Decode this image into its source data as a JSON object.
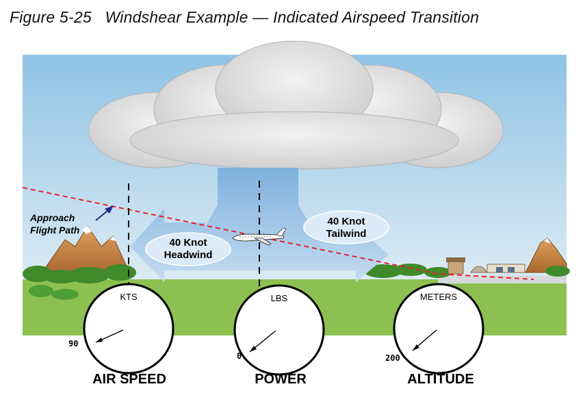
{
  "title": "Figure 5-25   Windshear Example — Indicated Airspeed Transition",
  "labels": {
    "approach_line1": "Approach",
    "approach_line2": "Flight Path",
    "headwind_line1": "40 Knot",
    "headwind_line2": "Headwind",
    "tailwind_line1": "40 Knot",
    "tailwind_line2": "Tailwind"
  },
  "gauges": [
    {
      "name": "AIR SPEED",
      "unit": "KTS",
      "value": "90"
    },
    {
      "name": "POWER",
      "unit": "LBS",
      "value": "0"
    },
    {
      "name": "ALTITUDE",
      "unit": "METERS",
      "value": "200"
    }
  ],
  "colors": {
    "sky": "#9fcae8",
    "ground": "#8cc152",
    "flight_path": "#e8202a",
    "downdraft": "#6fa4d6",
    "cloud": "#e4e4e4"
  }
}
